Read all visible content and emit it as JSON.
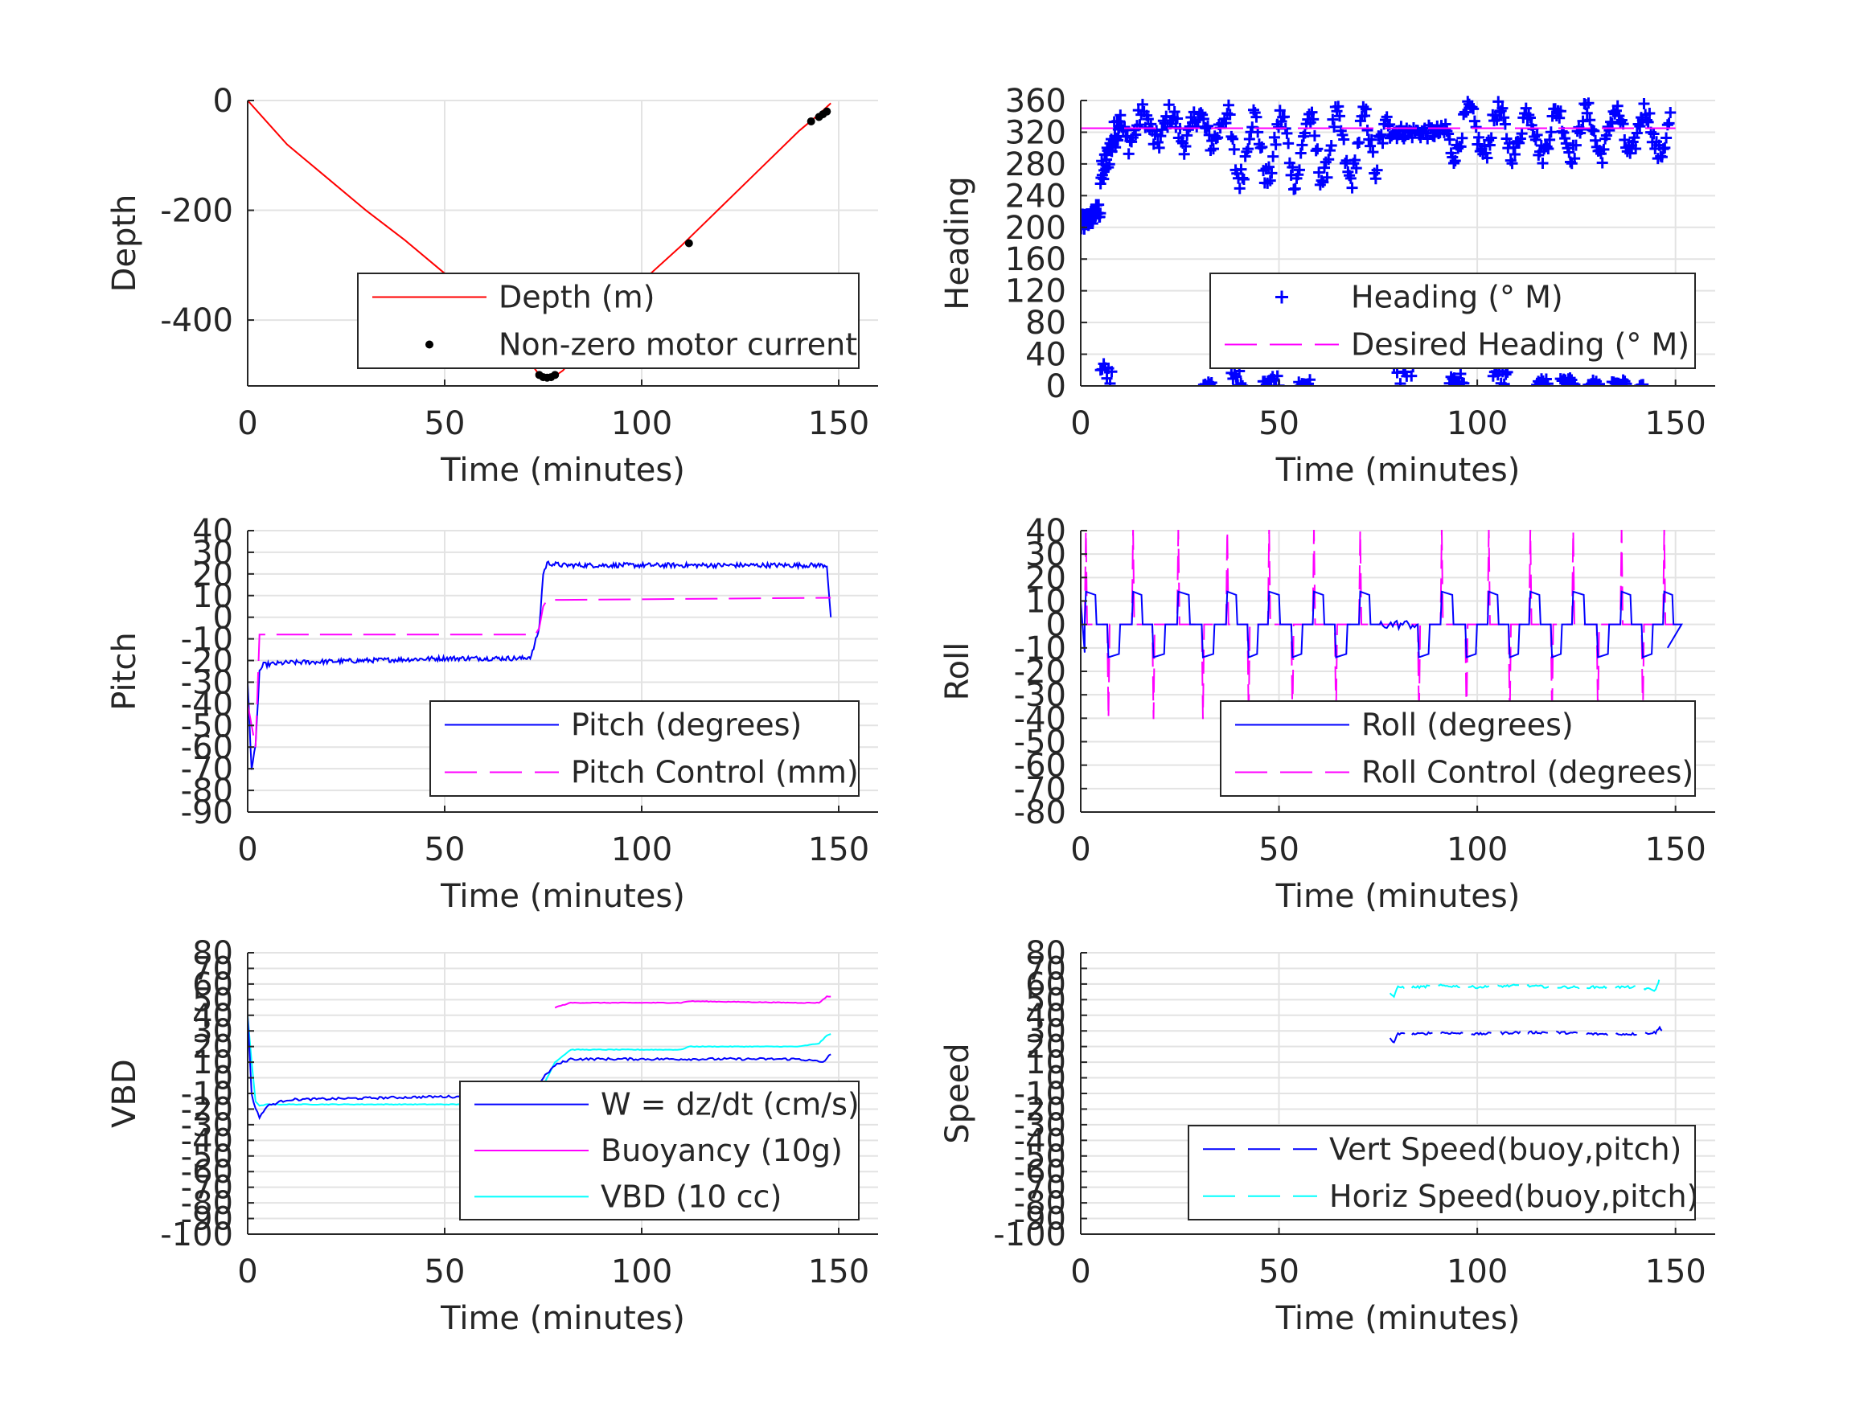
{
  "colors": {
    "grid": "#e3e3e3",
    "axis": "#262626",
    "red": "#ff0000",
    "blue": "#0000ff",
    "magenta": "#ff00ff",
    "cyan": "#00ffff",
    "black": "#000000"
  },
  "charts": [
    {
      "id": "depth",
      "ylabel": "Depth",
      "xlabel": "Time (minutes)",
      "legend": [
        "Depth (m)",
        "Non-zero motor current"
      ]
    },
    {
      "id": "heading",
      "ylabel": "Heading",
      "xlabel": "Time (minutes)",
      "legend": [
        "Heading (° M)",
        "Desired Heading (° M)"
      ]
    },
    {
      "id": "pitch",
      "ylabel": "Pitch",
      "xlabel": "Time (minutes)",
      "legend": [
        "Pitch (degrees)",
        "Pitch Control (mm)"
      ]
    },
    {
      "id": "roll",
      "ylabel": "Roll",
      "xlabel": "Time (minutes)",
      "legend": [
        "Roll (degrees)",
        "Roll Control (degrees)"
      ]
    },
    {
      "id": "vbd",
      "ylabel": "VBD",
      "xlabel": "Time (minutes)",
      "legend": [
        "W = dz/dt (cm/s)",
        "Buoyancy (10g)",
        "VBD (10 cc)"
      ]
    },
    {
      "id": "speed",
      "ylabel": "Speed",
      "xlabel": "Time (minutes)",
      "legend": [
        "Vert Speed(buoy,pitch)",
        "Horiz Speed(buoy,pitch)"
      ]
    }
  ],
  "chart_data": [
    {
      "type": "line",
      "xlim": [
        0,
        160
      ],
      "ylim": [
        -520,
        0
      ],
      "xticks": [
        0,
        50,
        100,
        150
      ],
      "yticks": [
        -400,
        -200,
        0
      ],
      "grid": true,
      "legend_position": "bottom-right",
      "series": [
        {
          "name": "Depth (m)",
          "style": "solid",
          "color": "red",
          "x": [
            0,
            5,
            10,
            20,
            30,
            40,
            50,
            60,
            70,
            74,
            76,
            78,
            80,
            85,
            90,
            100,
            110,
            120,
            130,
            140,
            145,
            148
          ],
          "y": [
            0,
            -40,
            -80,
            -140,
            -200,
            -255,
            -315,
            -380,
            -460,
            -500,
            -505,
            -502,
            -492,
            -450,
            -410,
            -330,
            -265,
            -195,
            -125,
            -55,
            -25,
            -5
          ]
        },
        {
          "name": "Non-zero motor current",
          "style": "dots",
          "color": "black",
          "x": [
            74,
            75,
            76,
            77,
            78,
            82,
            112,
            143,
            145,
            146,
            147
          ],
          "y": [
            -500,
            -504,
            -505,
            -504,
            -500,
            -480,
            -260,
            -38,
            -30,
            -25,
            -20
          ]
        }
      ]
    },
    {
      "type": "scatter",
      "xlim": [
        0,
        160
      ],
      "ylim": [
        0,
        360
      ],
      "xticks": [
        0,
        50,
        100,
        150
      ],
      "yticks": [
        0,
        40,
        80,
        120,
        160,
        200,
        240,
        280,
        320,
        360
      ],
      "grid": true,
      "legend_position": "bottom-right",
      "series": [
        {
          "name": "Heading (° M)",
          "style": "plus",
          "color": "blue"
        },
        {
          "name": "Desired Heading (° M)",
          "style": "dashed",
          "color": "magenta",
          "x": [
            0,
            5,
            150
          ],
          "y": [
            325,
            325,
            325
          ]
        }
      ]
    },
    {
      "type": "line",
      "xlim": [
        0,
        160
      ],
      "ylim": [
        -90,
        40
      ],
      "xticks": [
        0,
        50,
        100,
        150
      ],
      "yticks": [
        -90,
        -80,
        -70,
        -60,
        -50,
        -40,
        -30,
        -20,
        -10,
        0,
        10,
        20,
        30,
        40
      ],
      "grid": true,
      "legend_position": "bottom-right",
      "series": [
        {
          "name": "Pitch (degrees)",
          "style": "solid",
          "color": "blue",
          "x": [
            0,
            1,
            2,
            3,
            4,
            10,
            30,
            50,
            70,
            72,
            74,
            75,
            76,
            80,
            100,
            120,
            140,
            147,
            148
          ],
          "y": [
            -30,
            -70,
            -60,
            -25,
            -22,
            -21,
            -20,
            -19,
            -19,
            -18,
            -5,
            20,
            25,
            24,
            24,
            24,
            24,
            24,
            0
          ]
        },
        {
          "name": "Pitch Control (mm)",
          "style": "dashed",
          "color": "magenta",
          "x": [
            0,
            2,
            3,
            5,
            73,
            74,
            75,
            76,
            80,
            148
          ],
          "y": [
            -40,
            -60,
            -8,
            -8,
            -8,
            -5,
            5,
            8,
            8,
            9
          ]
        }
      ]
    },
    {
      "type": "line",
      "xlim": [
        0,
        160
      ],
      "ylim": [
        -80,
        40
      ],
      "xticks": [
        0,
        50,
        100,
        150
      ],
      "yticks": [
        -80,
        -70,
        -60,
        -50,
        -40,
        -30,
        -20,
        -10,
        0,
        10,
        20,
        30,
        40
      ],
      "grid": true,
      "legend_position": "bottom-right",
      "series": [
        {
          "name": "Roll (degrees)",
          "style": "solid",
          "color": "blue"
        },
        {
          "name": "Roll Control (degrees)",
          "style": "dashed",
          "color": "magenta"
        }
      ]
    },
    {
      "type": "line",
      "xlim": [
        0,
        160
      ],
      "ylim": [
        -100,
        80
      ],
      "xticks": [
        0,
        50,
        100,
        150
      ],
      "yticks": [
        -100,
        -90,
        -80,
        -70,
        -60,
        -50,
        -40,
        -30,
        -20,
        -10,
        0,
        10,
        20,
        30,
        40,
        50,
        60,
        70,
        80
      ],
      "grid": true,
      "legend_position": "bottom-right",
      "series": [
        {
          "name": "W = dz/dt (cm/s)",
          "style": "solid",
          "color": "blue",
          "x": [
            0,
            1,
            2,
            3,
            5,
            10,
            30,
            50,
            70,
            73,
            75,
            78,
            82,
            100,
            120,
            140,
            146,
            148
          ],
          "y": [
            40,
            -10,
            -20,
            -25,
            -18,
            -14,
            -13,
            -12,
            -13,
            -10,
            0,
            8,
            12,
            12,
            12,
            12,
            10,
            15
          ]
        },
        {
          "name": "Buoyancy (10g)",
          "style": "solid",
          "color": "magenta",
          "x": [
            78,
            82,
            100,
            110,
            112,
            140,
            145,
            147,
            148
          ],
          "y": [
            45,
            48,
            48,
            48,
            49,
            48,
            48,
            52,
            52
          ]
        },
        {
          "name": "VBD (10 cc)",
          "style": "solid",
          "color": "cyan",
          "x": [
            0,
            1,
            2,
            3,
            5,
            30,
            50,
            70,
            73,
            75,
            78,
            82,
            100,
            110,
            112,
            140,
            145,
            147,
            148
          ],
          "y": [
            40,
            10,
            -15,
            -18,
            -17,
            -17,
            -17,
            -17,
            -17,
            -5,
            10,
            18,
            18,
            18,
            20,
            20,
            22,
            27,
            28
          ]
        }
      ]
    },
    {
      "type": "line",
      "xlim": [
        0,
        160
      ],
      "ylim": [
        -100,
        80
      ],
      "xticks": [
        0,
        50,
        100,
        150
      ],
      "yticks": [
        -100,
        -90,
        -80,
        -70,
        -60,
        -50,
        -40,
        -30,
        -20,
        -10,
        0,
        10,
        20,
        30,
        40,
        50,
        60,
        70,
        80
      ],
      "grid": true,
      "legend_position": "bottom-right",
      "series": [
        {
          "name": "Vert Speed(buoy,pitch)",
          "style": "dashed",
          "color": "blue",
          "x": [
            78,
            79,
            80,
            85,
            90,
            100,
            110,
            120,
            130,
            140,
            145,
            146,
            147
          ],
          "y": [
            25,
            23,
            28,
            28,
            29,
            28,
            29,
            29,
            28,
            28,
            29,
            32,
            30
          ]
        },
        {
          "name": "Horiz Speed(buoy,pitch)",
          "style": "dashed",
          "color": "cyan",
          "x": [
            78,
            79,
            80,
            85,
            90,
            100,
            110,
            120,
            130,
            140,
            145,
            146,
            147
          ],
          "y": [
            54,
            52,
            58,
            58,
            59,
            58,
            59,
            58,
            58,
            58,
            56,
            64,
            62
          ]
        }
      ]
    }
  ]
}
